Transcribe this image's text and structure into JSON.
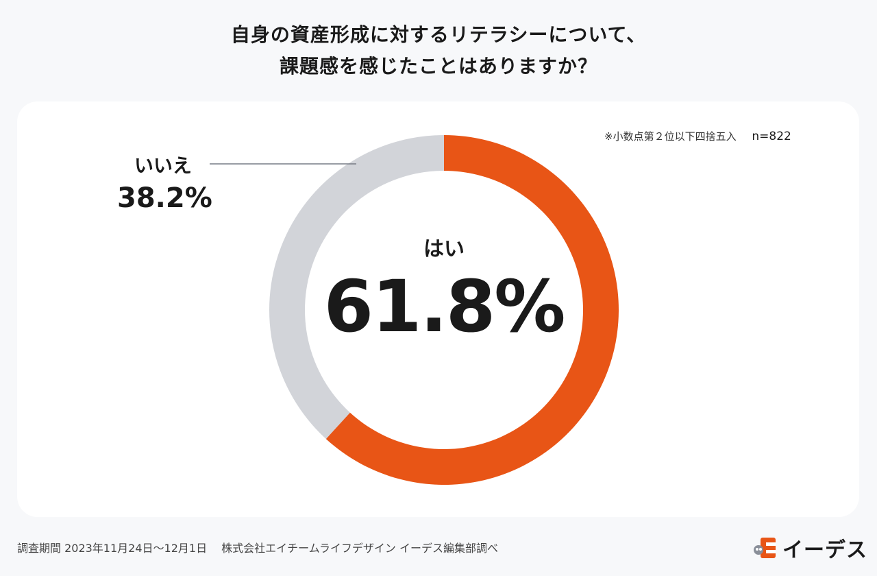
{
  "title": {
    "line1": "自身の資産形成に対するリテラシーについて、",
    "line2": "課題感を感じたことはありますか？"
  },
  "note": {
    "rounding": "※小数点第２位以下四捨五入",
    "sample": "n=822"
  },
  "labels": {
    "yes_name": "はい",
    "yes_value": "61.8%",
    "no_name": "いいえ",
    "no_value": "38.2%"
  },
  "footer": {
    "text": "調査期間 2023年11月24日〜12月1日　 株式会社エイチームライフデザイン イーデス編集部調べ"
  },
  "logo": {
    "text": "イーデス"
  },
  "colors": {
    "yes": "#e85516",
    "no": "#d2d4d9",
    "background": "#f7f8fa",
    "card": "#ffffff",
    "logo_accent": "#e85516"
  },
  "chart_data": {
    "type": "pie",
    "variant": "donut",
    "categories": [
      "はい",
      "いいえ"
    ],
    "values": [
      61.8,
      38.2
    ],
    "unit": "%",
    "start": "12 o'clock",
    "direction": "clockwise"
  }
}
